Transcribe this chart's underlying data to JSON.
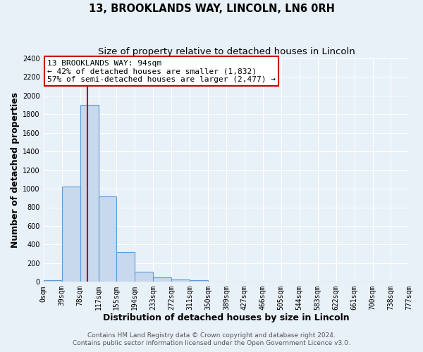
{
  "title": "13, BROOKLANDS WAY, LINCOLN, LN6 0RH",
  "subtitle": "Size of property relative to detached houses in Lincoln",
  "xlabel": "Distribution of detached houses by size in Lincoln",
  "ylabel": "Number of detached properties",
  "bar_edges": [
    0,
    39,
    78,
    117,
    155,
    194,
    233,
    272,
    311,
    350,
    389,
    427,
    466,
    505,
    544,
    583,
    622,
    661,
    700,
    738,
    777
  ],
  "bar_heights": [
    20,
    1020,
    1900,
    920,
    320,
    105,
    50,
    25,
    15,
    0,
    0,
    0,
    0,
    0,
    0,
    0,
    0,
    0,
    0,
    0
  ],
  "tick_labels": [
    "0sqm",
    "39sqm",
    "78sqm",
    "117sqm",
    "155sqm",
    "194sqm",
    "233sqm",
    "272sqm",
    "311sqm",
    "350sqm",
    "389sqm",
    "427sqm",
    "466sqm",
    "505sqm",
    "544sqm",
    "583sqm",
    "622sqm",
    "661sqm",
    "700sqm",
    "738sqm",
    "777sqm"
  ],
  "bar_color": "#c8d9ed",
  "bar_edge_color": "#5b9bd5",
  "vline_x": 94,
  "vline_color": "#aa0000",
  "ylim": [
    0,
    2400
  ],
  "yticks": [
    0,
    200,
    400,
    600,
    800,
    1000,
    1200,
    1400,
    1600,
    1800,
    2000,
    2200,
    2400
  ],
  "annotation_title": "13 BROOKLANDS WAY: 94sqm",
  "annotation_line1": "← 42% of detached houses are smaller (1,832)",
  "annotation_line2": "57% of semi-detached houses are larger (2,477) →",
  "annotation_box_color": "#ffffff",
  "annotation_box_edge": "#cc0000",
  "footer1": "Contains HM Land Registry data © Crown copyright and database right 2024.",
  "footer2": "Contains public sector information licensed under the Open Government Licence v3.0.",
  "bg_color": "#e8f0f8",
  "plot_bg_color": "#e8f0f8",
  "grid_color": "#ffffff",
  "title_fontsize": 10.5,
  "subtitle_fontsize": 9.5,
  "axis_label_fontsize": 9,
  "tick_fontsize": 7,
  "footer_fontsize": 6.5,
  "annotation_fontsize": 8
}
